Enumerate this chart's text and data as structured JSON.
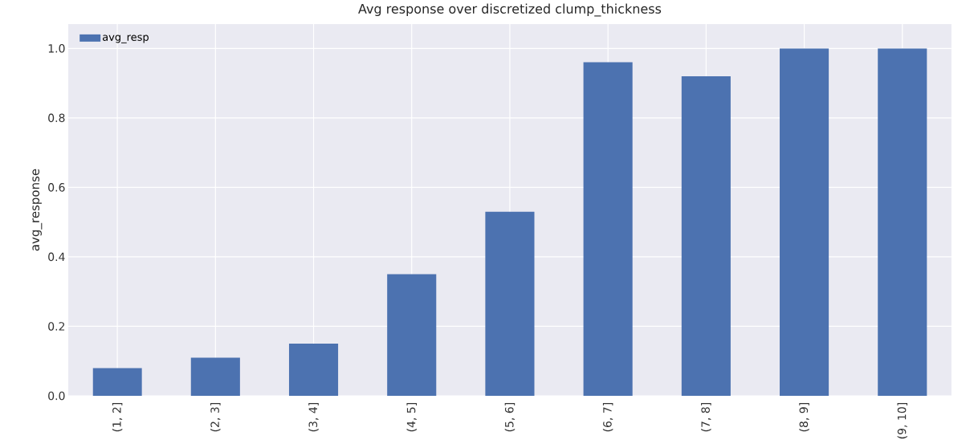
{
  "chart_data": {
    "type": "bar",
    "title": "Avg response over discretized clump_thickness",
    "ylabel": "avg_response",
    "categories": [
      "(1, 2]",
      "(2, 3]",
      "(3, 4]",
      "(4, 5]",
      "(5, 6]",
      "(6, 7]",
      "(7, 8]",
      "(8, 9]",
      "(9, 10]"
    ],
    "series": [
      {
        "name": "avg_resp",
        "color": "#4c72b0",
        "values": [
          0.08,
          0.11,
          0.15,
          0.35,
          0.53,
          0.96,
          0.92,
          1.0,
          1.0
        ]
      }
    ],
    "ylim": [
      0,
      1.07
    ],
    "yticks": [
      {
        "value": 0,
        "label": "0.0"
      },
      0.2,
      0.4,
      0.6,
      0.8,
      {
        "value": 1,
        "label": "1.0"
      }
    ],
    "grid": true,
    "legend": "top left"
  }
}
